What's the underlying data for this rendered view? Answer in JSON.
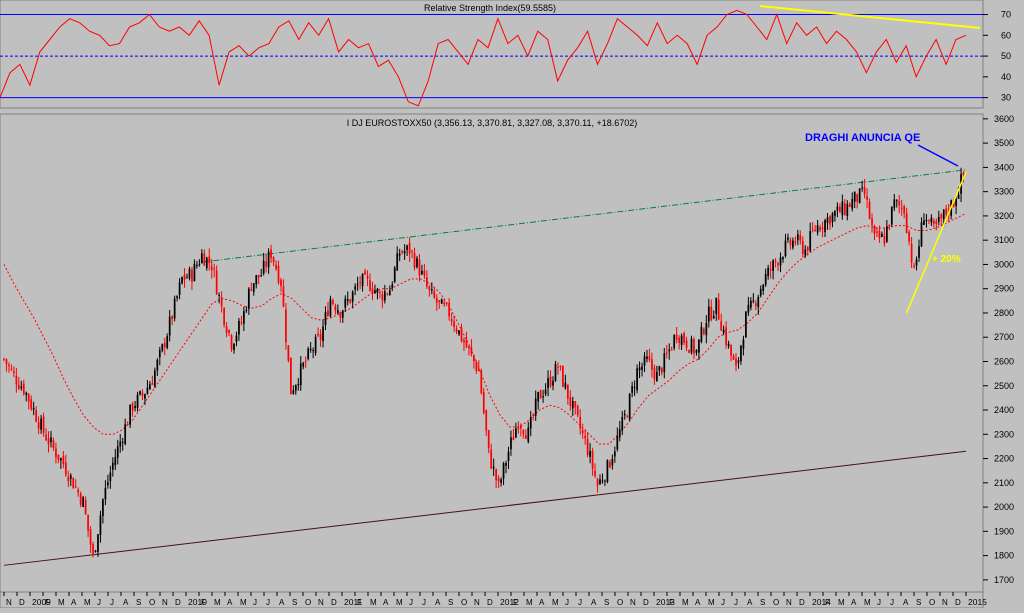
{
  "colors": {
    "panel_bg": "#c0c0c0",
    "ref_line": "#0000ff",
    "rsi_line": "#ff0000",
    "trend_yellow": "#ffff00",
    "ma_line": "#ff0000",
    "trend_green": "#008040",
    "trend_brown": "#4a1010",
    "candle_up": "#000000",
    "candle_down": "#ff0000",
    "callout_text": "#0000ff",
    "pct_text": "#ffff00"
  },
  "rsi_panel": {
    "title": "Relative Strength Index(59.5585)",
    "tick_labels": [
      "70",
      "60",
      "50",
      "40",
      "30"
    ]
  },
  "price_panel": {
    "title": "I DJ EUROSTOXX50 (3,356.13, 3,370.81, 3,327.08, 3,370.11, +18.6702)",
    "tick_labels": [
      "3600",
      "3500",
      "3400",
      "3300",
      "3200",
      "3100",
      "3000",
      "2900",
      "2800",
      "2700",
      "2600",
      "2500",
      "2400",
      "2300",
      "2200",
      "2100",
      "2000",
      "1900",
      "1800",
      "1700"
    ]
  },
  "annotations": {
    "callout": "DRAGHI ANUNCIA QE",
    "percent": "+ 20%"
  },
  "x_axis": {
    "labels": [
      "N",
      "D",
      "2009",
      "F",
      "M",
      "A",
      "M",
      "J",
      "J",
      "A",
      "S",
      "O",
      "N",
      "D",
      "2010",
      "F",
      "M",
      "A",
      "M",
      "J",
      "J",
      "A",
      "S",
      "O",
      "N",
      "D",
      "2011",
      "F",
      "M",
      "A",
      "M",
      "J",
      "J",
      "A",
      "S",
      "O",
      "N",
      "D",
      "2012",
      "F",
      "M",
      "A",
      "M",
      "J",
      "J",
      "A",
      "S",
      "O",
      "N",
      "D",
      "2013",
      "F",
      "M",
      "A",
      "M",
      "J",
      "J",
      "A",
      "S",
      "O",
      "N",
      "D",
      "2014",
      "F",
      "M",
      "A",
      "M",
      "J",
      "J",
      "A",
      "S",
      "O",
      "N",
      "D",
      "2015"
    ]
  },
  "chart_data": [
    {
      "type": "line",
      "title": "Relative Strength Index(59.5585)",
      "ylim": [
        25,
        77
      ],
      "reference_levels": [
        30,
        50,
        70
      ],
      "series": [
        {
          "name": "Relative Strength Index",
          "values": [
            30,
            42,
            46,
            36,
            52,
            58,
            64,
            68,
            66,
            62,
            60,
            55,
            56,
            64,
            66,
            70,
            64,
            62,
            64,
            60,
            67,
            60,
            36,
            52,
            55,
            50,
            54,
            56,
            64,
            67,
            58,
            66,
            60,
            68,
            52,
            58,
            54,
            56,
            45,
            48,
            40,
            28,
            26,
            38,
            56,
            58,
            52,
            46,
            58,
            54,
            68,
            56,
            60,
            50,
            62,
            58,
            38,
            48,
            54,
            62,
            46,
            56,
            68,
            64,
            60,
            55,
            66,
            56,
            60,
            56,
            46,
            60,
            64,
            70,
            72,
            70,
            64,
            58,
            70,
            56,
            66,
            60,
            64,
            56,
            62,
            58,
            52,
            42,
            52,
            58,
            47,
            55,
            40,
            50,
            58,
            46,
            58,
            60
          ]
        }
      ]
    },
    {
      "type": "candlestick",
      "title": "I DJ EUROSTOXX50 (3,356.13, 3,370.81, 3,327.08, 3,370.11, +18.6702)",
      "ylim": [
        1650,
        3620
      ],
      "last_bar": {
        "open": 3356.13,
        "high": 3370.81,
        "low": 3327.08,
        "close": 3370.11,
        "change": 18.6702
      },
      "close_path": [
        2610,
        2540,
        2490,
        2400,
        2310,
        2240,
        2180,
        2100,
        2020,
        1790,
        2030,
        2180,
        2300,
        2420,
        2460,
        2530,
        2650,
        2790,
        2940,
        2960,
        3040,
        3000,
        2820,
        2680,
        2760,
        2920,
        2960,
        3050,
        2930,
        2480,
        2560,
        2640,
        2700,
        2860,
        2810,
        2860,
        2930,
        2920,
        2870,
        2900,
        3050,
        3060,
        2980,
        2880,
        2830,
        2800,
        2720,
        2640,
        2560,
        2220,
        2080,
        2230,
        2360,
        2300,
        2450,
        2510,
        2580,
        2460,
        2350,
        2240,
        2090,
        2160,
        2280,
        2400,
        2560,
        2600,
        2540,
        2620,
        2720,
        2680,
        2640,
        2780,
        2830,
        2690,
        2560,
        2780,
        2860,
        2950,
        3010,
        3070,
        3100,
        3060,
        3150,
        3180,
        3210,
        3230,
        3270,
        3290,
        3100,
        3110,
        3250,
        3230,
        2960,
        3210,
        3140,
        3200,
        3260,
        3370
      ],
      "moving_average": [
        3000,
        2920,
        2850,
        2780,
        2700,
        2620,
        2530,
        2450,
        2380,
        2330,
        2300,
        2300,
        2320,
        2360,
        2420,
        2480,
        2540,
        2600,
        2660,
        2720,
        2780,
        2840,
        2860,
        2850,
        2830,
        2820,
        2830,
        2860,
        2880,
        2860,
        2820,
        2780,
        2770,
        2780,
        2800,
        2820,
        2850,
        2880,
        2900,
        2900,
        2920,
        2940,
        2940,
        2920,
        2880,
        2820,
        2740,
        2660,
        2560,
        2460,
        2380,
        2330,
        2330,
        2360,
        2400,
        2420,
        2410,
        2380,
        2340,
        2300,
        2260,
        2260,
        2300,
        2350,
        2410,
        2460,
        2490,
        2520,
        2560,
        2590,
        2610,
        2650,
        2700,
        2720,
        2730,
        2760,
        2800,
        2860,
        2920,
        2970,
        3010,
        3040,
        3070,
        3090,
        3110,
        3130,
        3150,
        3160,
        3150,
        3150,
        3160,
        3160,
        3140,
        3140,
        3150,
        3170,
        3190,
        3210
      ],
      "trendlines": [
        {
          "from": {
            "index": 20,
            "value": 3010
          },
          "to": {
            "index": 97,
            "value": 3390
          }
        },
        {
          "from": {
            "index": 0,
            "value": 1760
          },
          "to": {
            "index": 97,
            "value": 2230
          }
        },
        {
          "from": {
            "index": 91,
            "value": 2800
          },
          "to": {
            "index": 97,
            "value": 3380
          }
        }
      ]
    }
  ]
}
